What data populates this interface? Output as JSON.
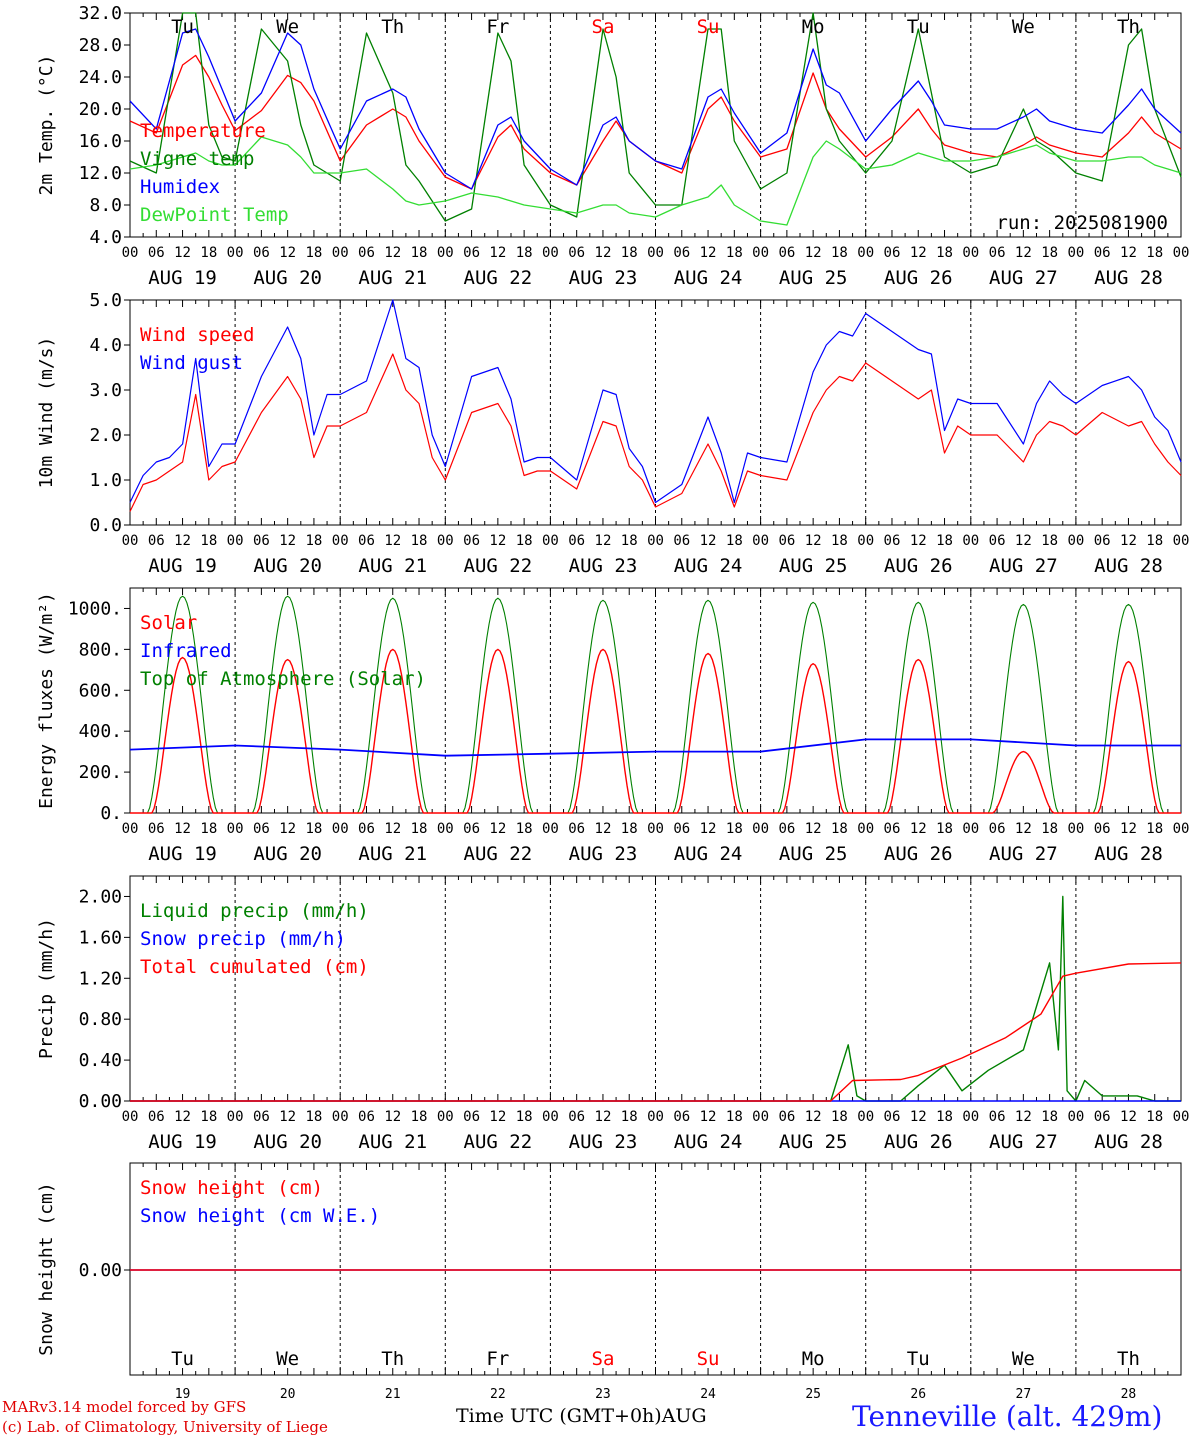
{
  "run_label": "run: 2025081900",
  "day_names": [
    {
      "text": "Tu",
      "color": "#000000"
    },
    {
      "text": "We",
      "color": "#000000"
    },
    {
      "text": "Th",
      "color": "#000000"
    },
    {
      "text": "Fr",
      "color": "#000000"
    },
    {
      "text": "Sa",
      "color": "#ff0000"
    },
    {
      "text": "Su",
      "color": "#ff0000"
    },
    {
      "text": "Mo",
      "color": "#000000"
    },
    {
      "text": "Tu",
      "color": "#000000"
    },
    {
      "text": "We",
      "color": "#000000"
    },
    {
      "text": "Th",
      "color": "#000000"
    }
  ],
  "date_labels": [
    "AUG 19",
    "AUG 20",
    "AUG 21",
    "AUG 22",
    "AUG 23",
    "AUG 24",
    "AUG 25",
    "AUG 26",
    "AUG 27",
    "AUG 28"
  ],
  "day_numbers": [
    "19",
    "20",
    "21",
    "22",
    "23",
    "24",
    "25",
    "26",
    "27",
    "28"
  ],
  "hour_ticks": [
    "00",
    "06",
    "12",
    "18"
  ],
  "end_tick": "00",
  "footer": {
    "credit_line1": "MARv3.14 model forced by GFS",
    "credit_line2": "(c) Lab. of Climatology, University of Liege",
    "time_label": "Time UTC (GMT+0h)AUG",
    "station": "Tenneville (alt. 429m)"
  },
  "colors": {
    "red": "#ff0000",
    "green": "#008000",
    "blue": "#0000ff",
    "lightgreen": "#33dd33"
  },
  "chart_data": [
    {
      "type": "line",
      "ylabel": "2m Temp. (°C)",
      "ylim": [
        4,
        32
      ],
      "yticks": [
        "4.0",
        "8.0",
        "12.0",
        "16.0",
        "20.0",
        "24.0",
        "28.0",
        "32.0"
      ],
      "x_hours": [
        0,
        6,
        12,
        15,
        18,
        21,
        24,
        30,
        36,
        39,
        42,
        48,
        54,
        60,
        63,
        66,
        72,
        78,
        84,
        87,
        90,
        96,
        102,
        108,
        111,
        114,
        120,
        126,
        132,
        135,
        138,
        144,
        150,
        156,
        159,
        162,
        168,
        174,
        180,
        183,
        186,
        192,
        198,
        204,
        207,
        210,
        216,
        222,
        228,
        231,
        234,
        240
      ],
      "series": [
        {
          "name": "Temperature",
          "color": "#ff0000",
          "values": [
            18.5,
            17.0,
            25.5,
            26.7,
            24.0,
            20.5,
            17.3,
            19.8,
            24.2,
            23.3,
            21.0,
            13.5,
            18.0,
            20.0,
            19.0,
            16.0,
            11.5,
            10.0,
            16.5,
            18.0,
            15.0,
            12.0,
            10.5,
            16.0,
            18.5,
            16.0,
            13.5,
            12.0,
            20.0,
            21.5,
            18.5,
            14.0,
            15.0,
            24.5,
            20.0,
            17.5,
            14.0,
            16.5,
            20.0,
            17.5,
            15.5,
            14.5,
            14.0,
            15.5,
            16.5,
            15.5,
            14.5,
            14.0,
            17.0,
            19.0,
            17.0,
            15.0
          ]
        },
        {
          "name": "Vigne temp",
          "color": "#008000",
          "values": [
            13.5,
            12.0,
            32.0,
            32.0,
            18.0,
            14.0,
            13.5,
            30.0,
            26.0,
            18.0,
            13.0,
            11.0,
            29.5,
            22.0,
            13.0,
            11.0,
            6.0,
            7.5,
            29.5,
            26.0,
            13.0,
            8.0,
            6.5,
            30.0,
            24.0,
            12.0,
            8.0,
            8.0,
            30.0,
            30.0,
            16.0,
            10.0,
            12.0,
            32.0,
            20.0,
            16.0,
            12.0,
            16.0,
            30.0,
            22.0,
            14.0,
            12.0,
            13.0,
            20.0,
            16.0,
            15.0,
            12.0,
            11.0,
            28.0,
            30.0,
            20.0,
            11.5
          ]
        },
        {
          "name": "Humidex",
          "color": "#0000ff",
          "values": [
            21.0,
            17.5,
            29.5,
            30.0,
            26.5,
            22.5,
            18.5,
            22.0,
            29.5,
            28.0,
            22.5,
            15.0,
            21.0,
            22.5,
            21.5,
            17.5,
            12.0,
            10.0,
            18.0,
            19.0,
            16.0,
            12.5,
            10.5,
            18.0,
            19.0,
            16.0,
            13.5,
            12.5,
            21.5,
            22.5,
            19.5,
            14.5,
            17.0,
            27.5,
            23.0,
            22.0,
            16.0,
            20.0,
            23.5,
            21.0,
            18.0,
            17.5,
            17.5,
            19.0,
            20.0,
            18.5,
            17.5,
            17.0,
            20.5,
            22.5,
            20.0,
            17.0
          ]
        },
        {
          "name": "DewPoint Temp",
          "color": "#33dd33",
          "values": [
            12.5,
            13.0,
            14.0,
            14.5,
            13.5,
            13.0,
            13.0,
            16.5,
            15.5,
            14.0,
            12.0,
            12.0,
            12.5,
            10.0,
            8.5,
            8.0,
            8.5,
            9.5,
            9.0,
            8.5,
            8.0,
            7.5,
            7.0,
            8.0,
            8.0,
            7.0,
            6.5,
            8.0,
            9.0,
            10.5,
            8.0,
            6.0,
            5.5,
            14.0,
            16.0,
            15.0,
            12.5,
            13.0,
            14.5,
            14.0,
            13.5,
            13.5,
            14.0,
            15.0,
            15.5,
            14.5,
            13.5,
            13.5,
            14.0,
            14.0,
            13.0,
            12.0
          ]
        }
      ]
    },
    {
      "type": "line",
      "ylabel": "10m Wind (m/s)",
      "ylim": [
        0,
        5
      ],
      "yticks": [
        "0.0",
        "1.0",
        "2.0",
        "3.0",
        "4.0",
        "5.0"
      ],
      "x_hours": [
        0,
        3,
        6,
        9,
        12,
        15,
        18,
        21,
        24,
        30,
        36,
        39,
        42,
        45,
        48,
        54,
        60,
        63,
        66,
        69,
        72,
        78,
        84,
        87,
        90,
        93,
        96,
        102,
        108,
        111,
        114,
        117,
        120,
        126,
        132,
        135,
        138,
        141,
        144,
        150,
        156,
        159,
        162,
        165,
        168,
        174,
        180,
        183,
        186,
        189,
        192,
        198,
        204,
        207,
        210,
        213,
        216,
        222,
        228,
        231,
        234,
        237,
        240
      ],
      "series": [
        {
          "name": "Wind speed",
          "color": "#ff0000",
          "values": [
            0.3,
            0.9,
            1.0,
            1.2,
            1.4,
            2.9,
            1.0,
            1.3,
            1.4,
            2.5,
            3.3,
            2.8,
            1.5,
            2.2,
            2.2,
            2.5,
            3.8,
            3.0,
            2.7,
            1.5,
            1.0,
            2.5,
            2.7,
            2.2,
            1.1,
            1.2,
            1.2,
            0.8,
            2.3,
            2.2,
            1.3,
            1.0,
            0.4,
            0.7,
            1.8,
            1.2,
            0.4,
            1.2,
            1.1,
            1.0,
            2.5,
            3.0,
            3.3,
            3.2,
            3.6,
            3.2,
            2.8,
            3.0,
            1.6,
            2.2,
            2.0,
            2.0,
            1.4,
            2.0,
            2.3,
            2.2,
            2.0,
            2.5,
            2.2,
            2.3,
            1.8,
            1.4,
            1.1
          ]
        },
        {
          "name": "Wind gust",
          "color": "#0000ff",
          "values": [
            0.5,
            1.1,
            1.4,
            1.5,
            1.8,
            3.7,
            1.3,
            1.8,
            1.8,
            3.3,
            4.4,
            3.7,
            2.0,
            2.9,
            2.9,
            3.2,
            5.0,
            3.7,
            3.5,
            2.0,
            1.3,
            3.3,
            3.5,
            2.8,
            1.4,
            1.5,
            1.5,
            1.0,
            3.0,
            2.9,
            1.7,
            1.3,
            0.5,
            0.9,
            2.4,
            1.6,
            0.5,
            1.6,
            1.5,
            1.4,
            3.4,
            4.0,
            4.3,
            4.2,
            4.7,
            4.3,
            3.9,
            3.8,
            2.1,
            2.8,
            2.7,
            2.7,
            1.8,
            2.7,
            3.2,
            2.9,
            2.7,
            3.1,
            3.3,
            3.0,
            2.4,
            2.1,
            1.4
          ]
        }
      ]
    },
    {
      "type": "line",
      "ylabel": "Energy fluxes (W/m²)",
      "ylim": [
        0,
        1100
      ],
      "yticks": [
        "0.",
        "200.",
        "400.",
        "600.",
        "800.",
        "1000."
      ],
      "series": [
        {
          "name": "Solar",
          "color": "#ff0000",
          "daily_peaks": [
            760,
            750,
            800,
            800,
            800,
            780,
            730,
            750,
            300,
            740
          ]
        },
        {
          "name": "Infrared",
          "color": "#0000ff",
          "x_hours": [
            0,
            24,
            48,
            72,
            96,
            120,
            144,
            168,
            192,
            216,
            240
          ],
          "values": [
            310,
            330,
            310,
            280,
            290,
            300,
            300,
            360,
            360,
            330,
            330
          ]
        },
        {
          "name": "Top of Atmosphere (Solar)",
          "color": "#008000",
          "daily_peaks": [
            1060,
            1060,
            1050,
            1050,
            1040,
            1040,
            1030,
            1030,
            1020,
            1020
          ]
        }
      ]
    },
    {
      "type": "line",
      "ylabel": "Precip (mm/h)",
      "ylim": [
        0,
        2.2
      ],
      "yticks": [
        "0.00",
        "0.40",
        "0.80",
        "1.20",
        "1.60",
        "2.00"
      ],
      "series": [
        {
          "name": "Liquid precip (mm/h)",
          "color": "#008000",
          "x_hours": [
            0,
            160,
            164,
            166,
            168,
            176,
            180,
            186,
            190,
            196,
            204,
            210,
            212,
            213,
            214,
            215,
            216,
            218,
            222,
            230,
            234,
            240
          ],
          "values": [
            0,
            0,
            0.55,
            0.05,
            0,
            0,
            0.15,
            0.35,
            0.1,
            0.3,
            0.5,
            1.35,
            0.5,
            2.0,
            0.1,
            0.05,
            0,
            0.2,
            0.05,
            0.05,
            0,
            0
          ]
        },
        {
          "name": "Snow precip (mm/h)",
          "color": "#0000ff",
          "x_hours": [
            0,
            240
          ],
          "values": [
            0,
            0
          ]
        },
        {
          "name": "Total cumulated (cm)",
          "color": "#ff0000",
          "x_hours": [
            0,
            160,
            165,
            176,
            180,
            190,
            200,
            208,
            213,
            216,
            228,
            240
          ],
          "values": [
            0,
            0,
            0.2,
            0.21,
            0.25,
            0.42,
            0.62,
            0.85,
            1.22,
            1.25,
            1.34,
            1.35
          ]
        }
      ]
    },
    {
      "type": "line",
      "ylabel": "Snow height (cm)",
      "yticks": [
        "0.00"
      ],
      "series": [
        {
          "name": "Snow height (cm)",
          "color": "#ff0000",
          "x_hours": [
            0,
            240
          ],
          "values": [
            0,
            0
          ]
        },
        {
          "name": "Snow height (cm W.E.)",
          "color": "#0000ff",
          "x_hours": [
            0,
            240
          ],
          "values": [
            0,
            0
          ]
        }
      ]
    }
  ]
}
